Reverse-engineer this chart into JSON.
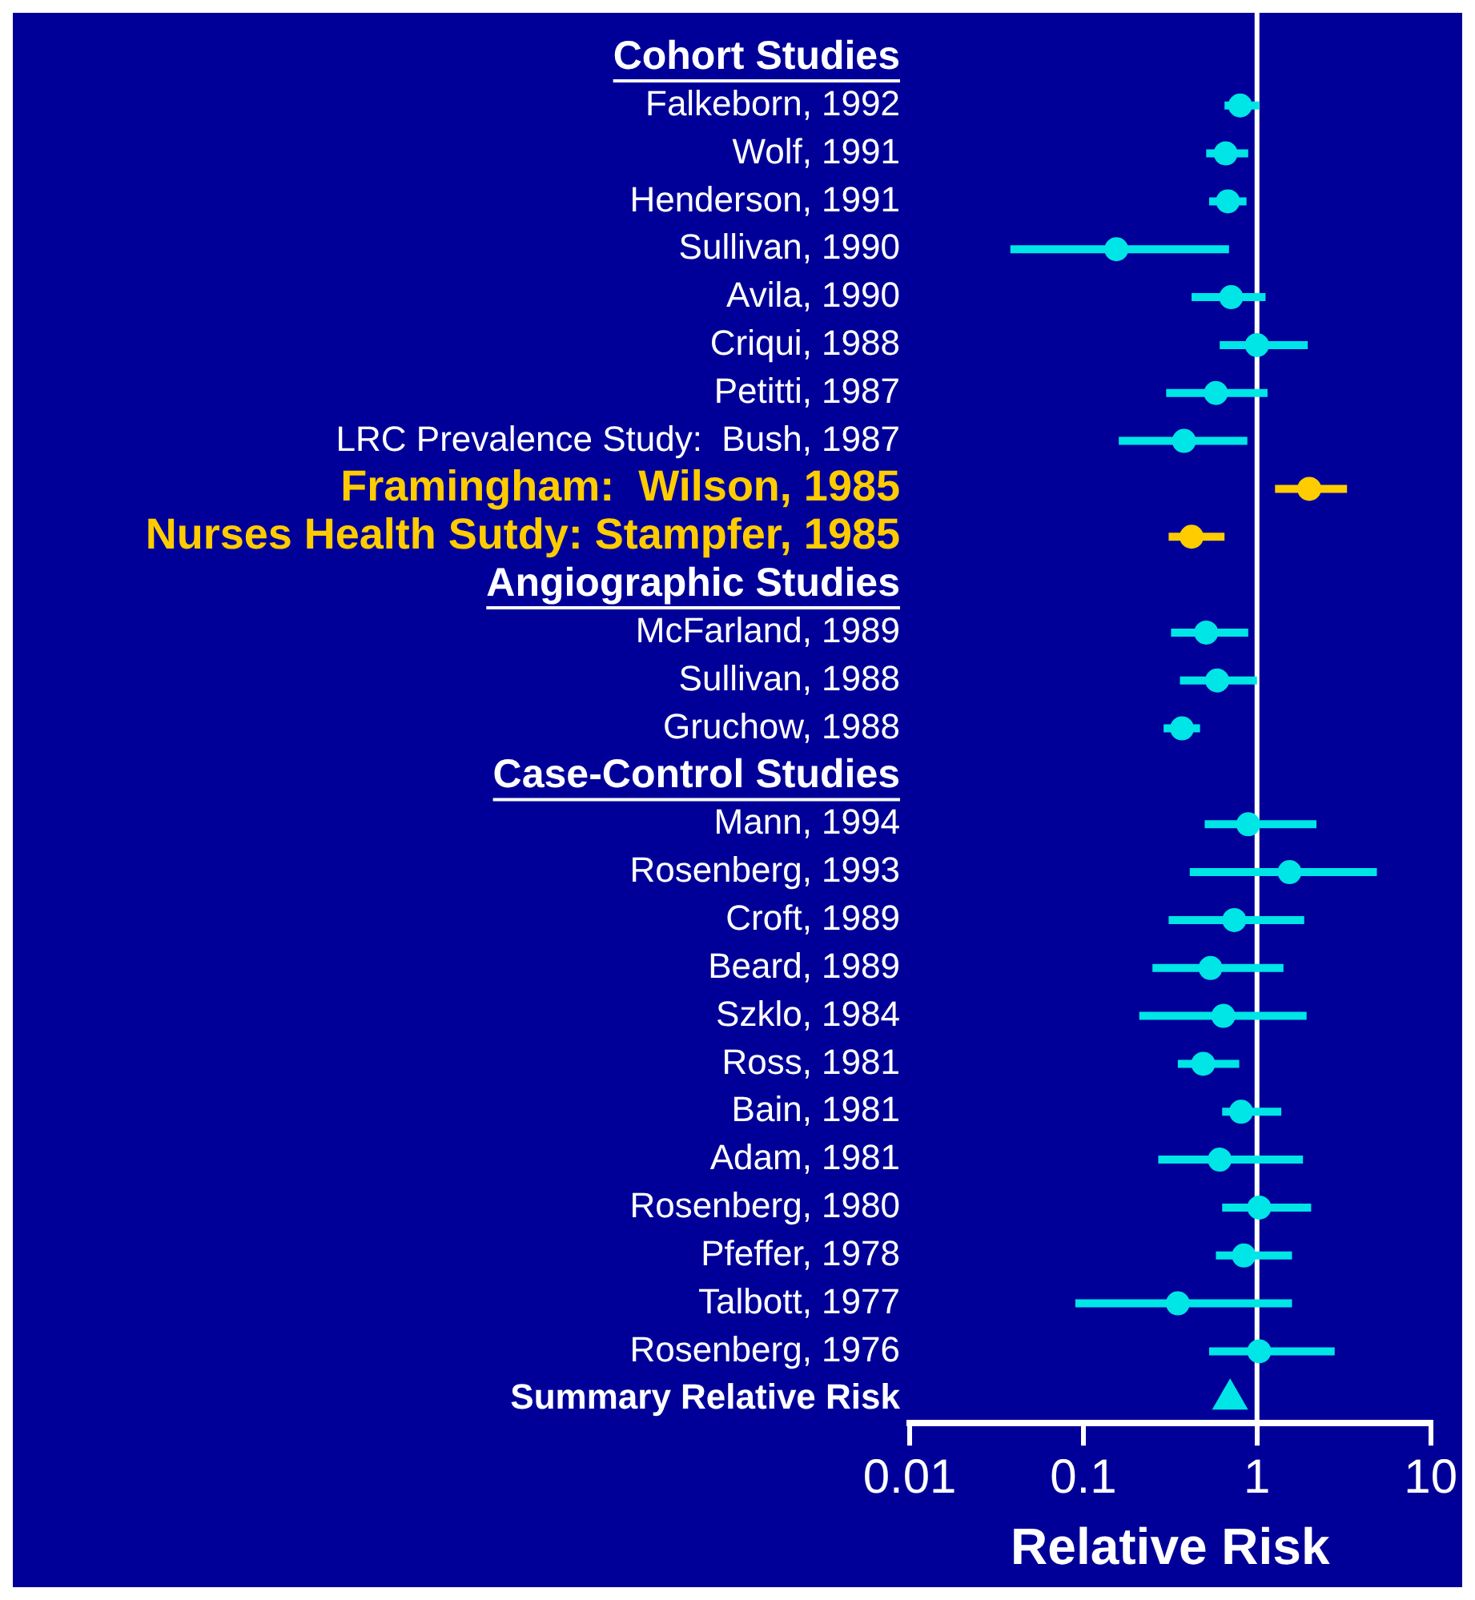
{
  "chart_data": {
    "type": "scatter",
    "orientation": "horizontal",
    "xlabel": "Relative Risk",
    "categories": [
      "Cohort Studies",
      "Falkeborn, 1992",
      "Wolf, 1991",
      "Henderson, 1991",
      "Sullivan, 1990",
      "Avila, 1990",
      "Criqui, 1988",
      "Petitti, 1987",
      "LRC Prevalence Study:  Bush, 1987",
      "Framingham:  Wilson, 1985",
      "Nurses Health Sutdy: Stampfer, 1985",
      "Angiographic Studies",
      "McFarland, 1989",
      "Sullivan, 1988",
      "Gruchow, 1988",
      "Case-Control Studies",
      "Mann, 1994",
      "Rosenberg, 1993",
      "Croft, 1989",
      "Beard, 1989",
      "Szklo, 1984",
      "Ross, 1981",
      "Bain, 1981",
      "Adam, 1981",
      "Rosenberg, 1980",
      "Pfeffer, 1978",
      "Talbott, 1977",
      "Rosenberg, 1976",
      "Summary Relative Risk"
    ],
    "series": [
      {
        "color": "#00e5e5",
        "marker": "circle",
        "values": [
          null,
          0.8,
          0.66,
          0.68,
          0.155,
          0.71,
          1.0,
          0.58,
          0.38,
          2.0,
          0.42,
          null,
          0.51,
          0.59,
          0.37,
          null,
          0.89,
          1.54,
          0.74,
          0.54,
          0.64,
          0.49,
          0.81,
          0.61,
          1.03,
          0.84,
          0.35,
          1.03,
          null
        ],
        "colors": [
          null,
          "#00e5e5",
          "#00e5e5",
          "#00e5e5",
          "#00e5e5",
          "#00e5e5",
          "#00e5e5",
          "#00e5e5",
          "#00e5e5",
          "#ffcc00",
          "#ffcc00",
          null,
          "#00e5e5",
          "#00e5e5",
          "#00e5e5",
          null,
          "#00e5e5",
          "#00e5e5",
          "#00e5e5",
          "#00e5e5",
          "#00e5e5",
          "#00e5e5",
          "#00e5e5",
          "#00e5e5",
          "#00e5e5",
          "#00e5e5",
          "#00e5e5",
          "#00e5e5",
          null
        ],
        "errors": [
          null,
          [
            0.65,
            1.03
          ],
          [
            0.51,
            0.89
          ],
          [
            0.53,
            0.87
          ],
          [
            0.038,
            0.69
          ],
          [
            0.42,
            1.12
          ],
          [
            0.61,
            1.96
          ],
          [
            0.3,
            1.15
          ],
          [
            0.16,
            0.88
          ],
          [
            1.27,
            3.3
          ],
          [
            0.31,
            0.65
          ],
          null,
          [
            0.32,
            0.89
          ],
          [
            0.36,
            1.0
          ],
          [
            0.29,
            0.47
          ],
          null,
          [
            0.5,
            2.2
          ],
          [
            0.41,
            4.9
          ],
          [
            0.31,
            1.87
          ],
          [
            0.25,
            1.42
          ],
          [
            0.21,
            1.93
          ],
          [
            0.35,
            0.79
          ],
          [
            0.63,
            1.38
          ],
          [
            0.27,
            1.84
          ],
          [
            0.63,
            2.05
          ],
          [
            0.58,
            1.59
          ],
          [
            0.09,
            1.59
          ],
          [
            0.53,
            2.8
          ],
          null
        ]
      },
      {
        "color": "#00e5e5",
        "marker": "triangle",
        "values": [
          null,
          null,
          null,
          null,
          null,
          null,
          null,
          null,
          null,
          null,
          null,
          null,
          null,
          null,
          null,
          null,
          null,
          null,
          null,
          null,
          null,
          null,
          null,
          null,
          null,
          null,
          null,
          null,
          0.7
        ]
      }
    ],
    "log": "x",
    "xlim": [
      0.01,
      10
    ],
    "xticks": [
      0.01,
      0.1,
      1,
      10
    ],
    "ref_lines": [
      {
        "axis": "x",
        "value": 1,
        "color": "#ffffff"
      }
    ],
    "grid": false,
    "legend": false
  }
}
